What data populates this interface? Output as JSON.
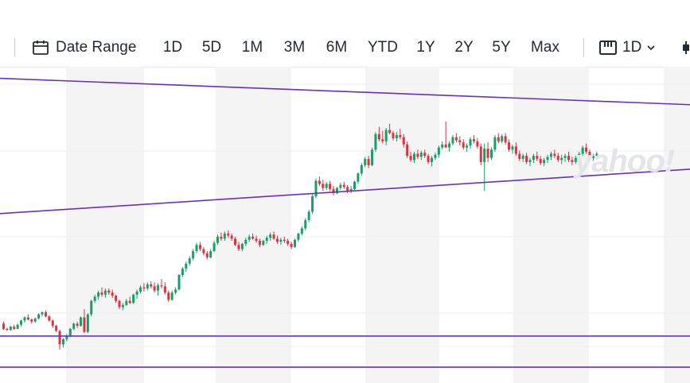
{
  "toolbar": {
    "date_range_label": "Date Range",
    "ranges": [
      "1D",
      "5D",
      "1M",
      "3M",
      "6M",
      "YTD",
      "1Y",
      "2Y",
      "5Y",
      "Max"
    ],
    "interval_label": "1D"
  },
  "watermark": "yahoo!",
  "colors": {
    "up": "#14a068",
    "down": "#e0313c",
    "trendline": "#6a2fc2",
    "grid_band": "#f4f4f5"
  },
  "chart_data": {
    "type": "candlestick",
    "candles_ohlc": [
      [
        10,
        12,
        4,
        5
      ],
      [
        5,
        6,
        3,
        4
      ],
      [
        4,
        8,
        3,
        7
      ],
      [
        7,
        9,
        4,
        5
      ],
      [
        5,
        10,
        5,
        9
      ],
      [
        9,
        14,
        7,
        13
      ],
      [
        13,
        17,
        11,
        16
      ],
      [
        16,
        19,
        13,
        14
      ],
      [
        14,
        15,
        10,
        12
      ],
      [
        12,
        16,
        11,
        15
      ],
      [
        15,
        20,
        14,
        19
      ],
      [
        19,
        22,
        17,
        21
      ],
      [
        21,
        23,
        16,
        17
      ],
      [
        17,
        18,
        12,
        13
      ],
      [
        13,
        14,
        6,
        8
      ],
      [
        8,
        9,
        2,
        3
      ],
      [
        3,
        4,
        -15,
        -10
      ],
      [
        -10,
        -4,
        -13,
        -5
      ],
      [
        -5,
        0,
        -7,
        -2
      ],
      [
        -2,
        6,
        -3,
        5
      ],
      [
        5,
        11,
        4,
        10
      ],
      [
        10,
        12,
        6,
        8
      ],
      [
        8,
        17,
        7,
        16
      ],
      [
        16,
        24,
        1,
        2
      ],
      [
        2,
        20,
        1,
        19
      ],
      [
        19,
        33,
        17,
        32
      ],
      [
        32,
        38,
        30,
        36
      ],
      [
        36,
        42,
        33,
        40
      ],
      [
        40,
        45,
        36,
        38
      ],
      [
        38,
        44,
        35,
        42
      ],
      [
        42,
        44,
        38,
        40
      ],
      [
        40,
        43,
        35,
        37
      ],
      [
        37,
        38,
        30,
        32
      ],
      [
        32,
        33,
        24,
        26
      ],
      [
        26,
        30,
        23,
        28
      ],
      [
        28,
        34,
        27,
        32
      ],
      [
        32,
        36,
        29,
        30
      ],
      [
        30,
        39,
        29,
        38
      ],
      [
        38,
        43,
        34,
        41
      ],
      [
        41,
        47,
        39,
        45
      ],
      [
        45,
        49,
        41,
        44
      ],
      [
        44,
        50,
        42,
        48
      ],
      [
        48,
        51,
        44,
        46
      ],
      [
        46,
        50,
        40,
        42
      ],
      [
        42,
        49,
        37,
        47
      ],
      [
        47,
        53,
        44,
        46
      ],
      [
        46,
        50,
        38,
        40
      ],
      [
        40,
        42,
        31,
        33
      ],
      [
        33,
        42,
        32,
        40
      ],
      [
        40,
        45,
        38,
        43
      ],
      [
        43,
        58,
        42,
        57
      ],
      [
        57,
        65,
        55,
        63
      ],
      [
        63,
        70,
        60,
        68
      ],
      [
        68,
        75,
        66,
        73
      ],
      [
        73,
        82,
        71,
        80
      ],
      [
        80,
        88,
        78,
        86
      ],
      [
        86,
        89,
        80,
        82
      ],
      [
        82,
        84,
        76,
        78
      ],
      [
        78,
        80,
        72,
        74
      ],
      [
        74,
        82,
        73,
        80
      ],
      [
        80,
        90,
        79,
        88
      ],
      [
        88,
        96,
        86,
        94
      ],
      [
        94,
        98,
        90,
        92
      ],
      [
        92,
        99,
        90,
        97
      ],
      [
        97,
        100,
        93,
        95
      ],
      [
        95,
        97,
        90,
        92
      ],
      [
        92,
        94,
        85,
        86
      ],
      [
        86,
        89,
        80,
        82
      ],
      [
        82,
        88,
        80,
        87
      ],
      [
        87,
        93,
        85,
        91
      ],
      [
        91,
        96,
        89,
        94
      ],
      [
        94,
        97,
        91,
        92
      ],
      [
        92,
        95,
        88,
        90
      ],
      [
        90,
        92,
        84,
        86
      ],
      [
        86,
        91,
        85,
        90
      ],
      [
        90,
        95,
        87,
        93
      ],
      [
        93,
        98,
        90,
        96
      ],
      [
        96,
        99,
        91,
        92
      ],
      [
        92,
        95,
        87,
        89
      ],
      [
        89,
        93,
        86,
        91
      ],
      [
        91,
        94,
        88,
        90
      ],
      [
        90,
        92,
        85,
        87
      ],
      [
        87,
        89,
        82,
        84
      ],
      [
        84,
        92,
        83,
        91
      ],
      [
        91,
        98,
        89,
        97
      ],
      [
        97,
        104,
        95,
        102
      ],
      [
        102,
        112,
        100,
        110
      ],
      [
        110,
        120,
        108,
        118
      ],
      [
        118,
        135,
        116,
        133
      ],
      [
        133,
        150,
        131,
        148
      ],
      [
        148,
        152,
        143,
        145
      ],
      [
        145,
        149,
        138,
        141
      ],
      [
        141,
        147,
        139,
        145
      ],
      [
        145,
        148,
        138,
        140
      ],
      [
        140,
        143,
        134,
        136
      ],
      [
        136,
        142,
        135,
        141
      ],
      [
        141,
        146,
        139,
        144
      ],
      [
        144,
        147,
        140,
        142
      ],
      [
        142,
        144,
        136,
        138
      ],
      [
        138,
        143,
        136,
        140
      ],
      [
        140,
        148,
        139,
        147
      ],
      [
        147,
        156,
        145,
        155
      ],
      [
        155,
        165,
        153,
        163
      ],
      [
        163,
        171,
        161,
        169
      ],
      [
        169,
        172,
        160,
        163
      ],
      [
        163,
        180,
        162,
        178
      ],
      [
        178,
        195,
        176,
        193
      ],
      [
        193,
        200,
        186,
        188
      ],
      [
        188,
        196,
        184,
        186
      ],
      [
        186,
        199,
        182,
        197
      ],
      [
        197,
        203,
        193,
        194
      ],
      [
        194,
        196,
        187,
        189
      ],
      [
        189,
        195,
        186,
        192
      ],
      [
        192,
        198,
        188,
        190
      ],
      [
        190,
        193,
        180,
        183
      ],
      [
        183,
        186,
        170,
        172
      ],
      [
        172,
        176,
        166,
        168
      ],
      [
        168,
        176,
        165,
        174
      ],
      [
        174,
        178,
        169,
        171
      ],
      [
        171,
        177,
        168,
        175
      ],
      [
        175,
        178,
        170,
        172
      ],
      [
        172,
        174,
        164,
        166
      ],
      [
        166,
        172,
        162,
        170
      ],
      [
        170,
        175,
        168,
        173
      ],
      [
        173,
        182,
        170,
        180
      ],
      [
        180,
        186,
        178,
        183
      ],
      [
        183,
        205,
        180,
        180
      ],
      [
        180,
        186,
        176,
        184
      ],
      [
        184,
        192,
        182,
        190
      ],
      [
        190,
        194,
        185,
        187
      ],
      [
        187,
        191,
        182,
        185
      ],
      [
        185,
        188,
        178,
        180
      ],
      [
        180,
        184,
        176,
        182
      ],
      [
        182,
        190,
        179,
        188
      ],
      [
        188,
        192,
        184,
        186
      ],
      [
        186,
        189,
        179,
        181
      ],
      [
        181,
        184,
        163,
        166
      ],
      [
        166,
        184,
        138,
        179
      ],
      [
        179,
        185,
        166,
        170
      ],
      [
        170,
        180,
        168,
        178
      ],
      [
        178,
        192,
        176,
        190
      ],
      [
        190,
        194,
        184,
        186
      ],
      [
        186,
        193,
        184,
        191
      ],
      [
        191,
        194,
        183,
        185
      ],
      [
        185,
        188,
        176,
        178
      ],
      [
        178,
        183,
        174,
        181
      ],
      [
        181,
        185,
        172,
        174
      ],
      [
        174,
        177,
        167,
        169
      ],
      [
        169,
        174,
        166,
        172
      ],
      [
        172,
        175,
        164,
        166
      ],
      [
        166,
        170,
        162,
        168
      ],
      [
        168,
        174,
        165,
        172
      ],
      [
        172,
        176,
        167,
        169
      ],
      [
        169,
        172,
        163,
        165
      ],
      [
        165,
        170,
        162,
        168
      ],
      [
        168,
        173,
        165,
        171
      ],
      [
        171,
        176,
        168,
        174
      ],
      [
        174,
        178,
        170,
        172
      ],
      [
        172,
        175,
        166,
        168
      ],
      [
        168,
        173,
        164,
        170
      ],
      [
        170,
        174,
        166,
        172
      ],
      [
        172,
        176,
        166,
        168
      ],
      [
        168,
        171,
        163,
        166
      ],
      [
        166,
        172,
        164,
        170
      ],
      [
        170,
        176,
        168,
        174
      ],
      [
        174,
        182,
        172,
        180
      ],
      [
        180,
        184,
        174,
        176
      ],
      [
        176,
        178,
        168,
        170
      ],
      [
        170,
        174,
        167,
        172
      ],
      [
        172,
        176,
        170,
        174
      ]
    ],
    "horizontal_lines": [
      -2,
      -32
    ],
    "trendlines": [
      {
        "from": [
          -10,
          248
        ],
        "to": [
          400,
          195
        ]
      },
      {
        "from": [
          -20,
          112
        ],
        "to": [
          420,
          208
        ]
      }
    ],
    "y_range": [
      -35,
      258
    ]
  }
}
